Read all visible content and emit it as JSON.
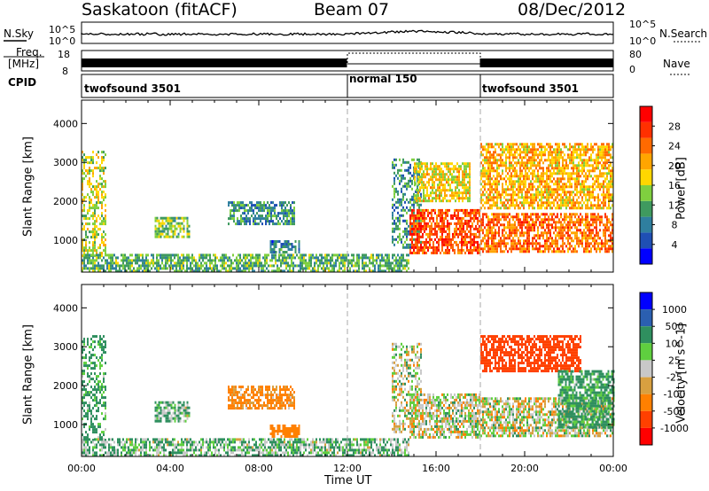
{
  "header": {
    "station": "Saskatoon (fitACF)",
    "beam": "Beam 07",
    "date": "08/Dec/2012"
  },
  "labels": {
    "nsky": "N.Sky",
    "nsky_top": "10^5",
    "nsky_bottom": "10^0",
    "nsearch": "N.Search",
    "nsearch_top": "10^5",
    "nsearch_bottom": "10^0",
    "freq_1": "Freq.",
    "freq_2": "[MHz]",
    "freq_top": "18",
    "freq_bottom": "8",
    "nave": "Nave",
    "nave_top": "80",
    "nave_bottom": "0",
    "cpid": "CPID"
  },
  "cpid_segments": [
    {
      "label": "twofsound 3501",
      "start": 0,
      "end": 12
    },
    {
      "label": "normal 150",
      "start": 12,
      "end": 18
    },
    {
      "label": "twofsound 3501",
      "start": 18,
      "end": 24
    }
  ],
  "colors": {
    "power": [
      "#0000ff",
      "#1f4fb4",
      "#2f7f9f",
      "#3f9a5f",
      "#7fcf3f",
      "#ffd700",
      "#ffa500",
      "#ff6a00",
      "#ff3000",
      "#ff0000"
    ],
    "velocity": [
      "#0000ff",
      "#2b5fb0",
      "#2f8f5f",
      "#5fcf3f",
      "#c8c8c8",
      "#d8a040",
      "#ff8000",
      "#ff4000",
      "#ff0000"
    ]
  },
  "chart_data": [
    {
      "type": "heatmap",
      "title": "Power",
      "xlabel": "",
      "ylabel": "Slant Range [km]",
      "xlim": [
        0,
        24
      ],
      "ylim": [
        180,
        4600
      ],
      "yticks": [
        1000,
        2000,
        3000,
        4000
      ],
      "xticks": [
        "00:00",
        "04:00",
        "08:00",
        "12:00",
        "16:00",
        "20:00",
        "00:00"
      ],
      "colorbar": {
        "label": "Power [dB]",
        "ticks": [
          4,
          8,
          12,
          16,
          20,
          24,
          28
        ],
        "range": [
          0,
          32
        ]
      },
      "regions": [
        {
          "t": [
            0.0,
            1.1
          ],
          "r": [
            600,
            3300
          ],
          "level": 16
        },
        {
          "t": [
            3.3,
            4.9
          ],
          "r": [
            1100,
            1600
          ],
          "level": 14
        },
        {
          "t": [
            6.6,
            9.6
          ],
          "r": [
            1400,
            2000
          ],
          "level": 10
        },
        {
          "t": [
            8.5,
            9.8
          ],
          "r": [
            700,
            1000
          ],
          "level": 8
        },
        {
          "t": [
            0.0,
            14.8
          ],
          "r": [
            200,
            650
          ],
          "level": 12
        },
        {
          "t": [
            14.0,
            15.3
          ],
          "r": [
            800,
            3100
          ],
          "level": 10
        },
        {
          "t": [
            14.8,
            18.0
          ],
          "r": [
            700,
            1800
          ],
          "level": 26
        },
        {
          "t": [
            15.0,
            17.5
          ],
          "r": [
            2000,
            3000
          ],
          "level": 18
        },
        {
          "t": [
            18.0,
            24.0
          ],
          "r": [
            700,
            1700
          ],
          "level": 24
        },
        {
          "t": [
            18.0,
            24.0
          ],
          "r": [
            1800,
            3500
          ],
          "level": 20
        }
      ]
    },
    {
      "type": "heatmap",
      "title": "Velocity",
      "xlabel": "Time UT",
      "ylabel": "Slant Range [km]",
      "xlim": [
        0,
        24
      ],
      "ylim": [
        180,
        4600
      ],
      "yticks": [
        1000,
        2000,
        3000,
        4000
      ],
      "xticks": [
        "00:00",
        "04:00",
        "08:00",
        "12:00",
        "16:00",
        "20:00",
        "00:00"
      ],
      "colorbar": {
        "label": "Velocity [m s^-1]",
        "ticks": [
          1000,
          500,
          100,
          25,
          -25,
          -100,
          -500,
          -1000
        ]
      },
      "regions": [
        {
          "t": [
            0.0,
            1.1
          ],
          "r": [
            600,
            3300
          ],
          "vel": 100
        },
        {
          "t": [
            3.3,
            4.9
          ],
          "r": [
            1100,
            1600
          ],
          "vel": 50
        },
        {
          "t": [
            6.6,
            9.6
          ],
          "r": [
            1400,
            2000
          ],
          "vel": -100
        },
        {
          "t": [
            8.5,
            9.8
          ],
          "r": [
            700,
            1000
          ],
          "vel": -200
        },
        {
          "t": [
            0.0,
            14.8
          ],
          "r": [
            200,
            650
          ],
          "vel": 50
        },
        {
          "t": [
            14.0,
            15.3
          ],
          "r": [
            800,
            3100
          ],
          "vel": 0
        },
        {
          "t": [
            14.8,
            18.0
          ],
          "r": [
            700,
            1800
          ],
          "vel": 0
        },
        {
          "t": [
            18.0,
            24.0
          ],
          "r": [
            700,
            1700
          ],
          "vel": 0
        },
        {
          "t": [
            18.0,
            22.5
          ],
          "r": [
            2400,
            3300
          ],
          "vel": -400
        },
        {
          "t": [
            21.5,
            24.0
          ],
          "r": [
            900,
            2400
          ],
          "vel": 100
        }
      ]
    }
  ]
}
